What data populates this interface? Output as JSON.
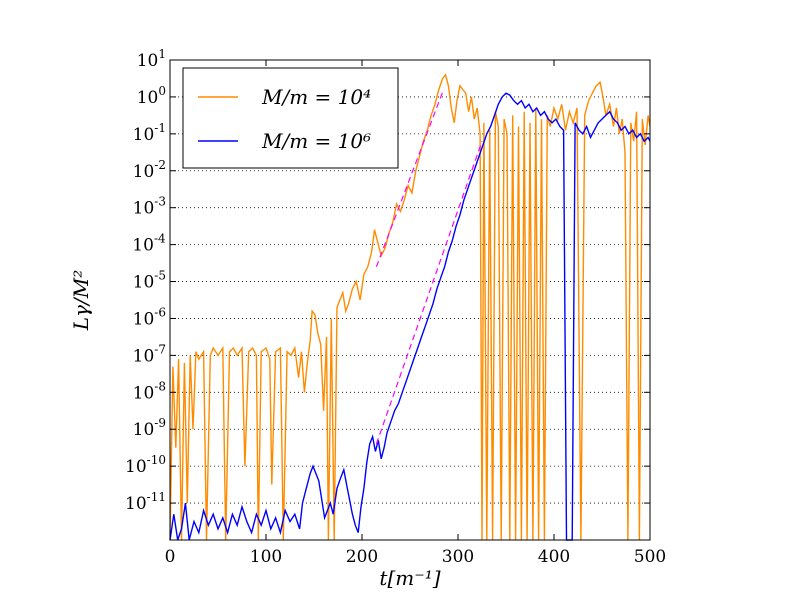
{
  "chart_data": {
    "type": "line",
    "title": "",
    "xlabel": "t[m⁻¹]",
    "ylabel": "Lγ/M²",
    "xlim": [
      0,
      500
    ],
    "ylim_log10": [
      -12,
      1
    ],
    "y_scale": "log",
    "grid": "y-dotted",
    "legend_position": "top-left",
    "x_ticks": [
      {
        "value": 0,
        "label": "0"
      },
      {
        "value": 100,
        "label": "100"
      },
      {
        "value": 200,
        "label": "200"
      },
      {
        "value": 300,
        "label": "300"
      },
      {
        "value": 400,
        "label": "400"
      },
      {
        "value": 500,
        "label": "500"
      }
    ],
    "y_ticks": [
      {
        "exp": 1,
        "base": "10",
        "sup": "1"
      },
      {
        "exp": 0,
        "base": "10",
        "sup": "0"
      },
      {
        "exp": -1,
        "base": "10",
        "sup": "-1"
      },
      {
        "exp": -2,
        "base": "10",
        "sup": "-2"
      },
      {
        "exp": -3,
        "base": "10",
        "sup": "-3"
      },
      {
        "exp": -4,
        "base": "10",
        "sup": "-4"
      },
      {
        "exp": -5,
        "base": "10",
        "sup": "-5"
      },
      {
        "exp": -6,
        "base": "10",
        "sup": "-6"
      },
      {
        "exp": -7,
        "base": "10",
        "sup": "-7"
      },
      {
        "exp": -8,
        "base": "10",
        "sup": "-8"
      },
      {
        "exp": -9,
        "base": "10",
        "sup": "-9"
      },
      {
        "exp": -10,
        "base": "10",
        "sup": "-10"
      },
      {
        "exp": -11,
        "base": "10",
        "sup": "-11"
      }
    ],
    "series": [
      {
        "name": "M/m = 10⁴",
        "color": "#ff8c00",
        "points_log10": [
          [
            0,
            -12
          ],
          [
            3,
            -7.3
          ],
          [
            6,
            -9.5
          ],
          [
            9,
            -7.1
          ],
          [
            12,
            -12
          ],
          [
            15,
            -7.2
          ],
          [
            18,
            -11
          ],
          [
            21,
            -7.0
          ],
          [
            24,
            -9
          ],
          [
            27,
            -6.9
          ],
          [
            30,
            -7.1
          ],
          [
            35,
            -6.9
          ],
          [
            38,
            -12
          ],
          [
            42,
            -7.0
          ],
          [
            45,
            -6.8
          ],
          [
            50,
            -7.0
          ],
          [
            55,
            -6.8
          ],
          [
            58,
            -12
          ],
          [
            62,
            -6.9
          ],
          [
            66,
            -6.8
          ],
          [
            70,
            -7.0
          ],
          [
            75,
            -6.8
          ],
          [
            78,
            -10
          ],
          [
            82,
            -6.9
          ],
          [
            86,
            -6.8
          ],
          [
            90,
            -7.0
          ],
          [
            92,
            -12
          ],
          [
            95,
            -6.9
          ],
          [
            100,
            -6.8
          ],
          [
            104,
            -7.1
          ],
          [
            106,
            -10.5
          ],
          [
            110,
            -6.9
          ],
          [
            115,
            -6.8
          ],
          [
            118,
            -12
          ],
          [
            122,
            -6.9
          ],
          [
            126,
            -7.0
          ],
          [
            130,
            -6.8
          ],
          [
            134,
            -7.6
          ],
          [
            137,
            -6.9
          ],
          [
            140,
            -8.0
          ],
          [
            143,
            -7.2
          ],
          [
            146,
            -6.6
          ],
          [
            148,
            -5.8
          ],
          [
            151,
            -5.9
          ],
          [
            154,
            -6.4
          ],
          [
            157,
            -6.7
          ],
          [
            160,
            -8.5
          ],
          [
            163,
            -6.5
          ],
          [
            165,
            -12
          ],
          [
            168,
            -6.0
          ],
          [
            171,
            -12
          ],
          [
            174,
            -5.7
          ],
          [
            177,
            -5.5
          ],
          [
            180,
            -5.3
          ],
          [
            183,
            -5.8
          ],
          [
            186,
            -5.6
          ],
          [
            190,
            -5.2
          ],
          [
            194,
            -5.0
          ],
          [
            198,
            -5.5
          ],
          [
            202,
            -4.8
          ],
          [
            206,
            -4.6
          ],
          [
            210,
            -4.2
          ],
          [
            213,
            -3.6
          ],
          [
            216,
            -3.9
          ],
          [
            220,
            -4.3
          ],
          [
            224,
            -4.1
          ],
          [
            228,
            -3.7
          ],
          [
            232,
            -3.4
          ],
          [
            236,
            -2.9
          ],
          [
            240,
            -3.1
          ],
          [
            244,
            -2.8
          ],
          [
            248,
            -2.4
          ],
          [
            252,
            -2.6
          ],
          [
            256,
            -2.0
          ],
          [
            260,
            -1.6
          ],
          [
            264,
            -1.2
          ],
          [
            268,
            -0.9
          ],
          [
            272,
            -0.5
          ],
          [
            276,
            -0.2
          ],
          [
            280,
            0.2
          ],
          [
            284,
            0.5
          ],
          [
            287,
            0.6
          ],
          [
            290,
            0.3
          ],
          [
            293,
            -0.3
          ],
          [
            296,
            -0.7
          ],
          [
            299,
            -0.1
          ],
          [
            302,
            0.3
          ],
          [
            305,
            0.2
          ],
          [
            308,
            0.1
          ],
          [
            311,
            -0.4
          ],
          [
            314,
            0.0
          ],
          [
            317,
            -0.6
          ],
          [
            320,
            -0.3
          ],
          [
            323,
            -1.0
          ],
          [
            325,
            -12
          ],
          [
            327,
            -0.7
          ],
          [
            330,
            -12
          ],
          [
            333,
            -0.9
          ],
          [
            336,
            -12
          ],
          [
            339,
            -0.4
          ],
          [
            342,
            -0.8
          ],
          [
            345,
            -12
          ],
          [
            348,
            -0.6
          ],
          [
            351,
            -1.0
          ],
          [
            354,
            -12
          ],
          [
            357,
            -0.5
          ],
          [
            360,
            -12
          ],
          [
            363,
            -0.8
          ],
          [
            366,
            -12
          ],
          [
            369,
            -0.4
          ],
          [
            372,
            -12
          ],
          [
            375,
            -0.7
          ],
          [
            378,
            -12
          ],
          [
            381,
            -0.3
          ],
          [
            384,
            -12
          ],
          [
            387,
            -0.6
          ],
          [
            390,
            -12
          ],
          [
            393,
            -0.5
          ],
          [
            396,
            -0.8
          ],
          [
            400,
            -0.3
          ],
          [
            404,
            -0.6
          ],
          [
            408,
            -0.2
          ],
          [
            412,
            -0.9
          ],
          [
            416,
            -0.4
          ],
          [
            420,
            -0.7
          ],
          [
            424,
            -0.3
          ],
          [
            428,
            -12
          ],
          [
            432,
            -0.5
          ],
          [
            436,
            -0.1
          ],
          [
            440,
            0.1
          ],
          [
            444,
            0.3
          ],
          [
            448,
            0.4
          ],
          [
            451,
            0.0
          ],
          [
            454,
            -0.5
          ],
          [
            458,
            -0.2
          ],
          [
            462,
            -0.8
          ],
          [
            465,
            -0.3
          ],
          [
            468,
            -1.0
          ],
          [
            471,
            -0.6
          ],
          [
            474,
            -1.5
          ],
          [
            477,
            -12
          ],
          [
            480,
            -0.7
          ],
          [
            483,
            -1.2
          ],
          [
            486,
            -0.4
          ],
          [
            489,
            -12
          ],
          [
            492,
            -0.6
          ],
          [
            495,
            -1.3
          ],
          [
            498,
            -0.5
          ],
          [
            500,
            -0.8
          ]
        ]
      },
      {
        "name": "M/m = 10⁶",
        "color": "#0000ff",
        "points_log10": [
          [
            0,
            -12
          ],
          [
            4,
            -11.3
          ],
          [
            8,
            -12
          ],
          [
            12,
            -11.7
          ],
          [
            16,
            -11.0
          ],
          [
            20,
            -12
          ],
          [
            25,
            -11.5
          ],
          [
            30,
            -11.8
          ],
          [
            35,
            -11.2
          ],
          [
            40,
            -11.6
          ],
          [
            45,
            -11.3
          ],
          [
            50,
            -11.7
          ],
          [
            55,
            -11.4
          ],
          [
            60,
            -11.8
          ],
          [
            65,
            -11.3
          ],
          [
            70,
            -11.6
          ],
          [
            75,
            -11.1
          ],
          [
            80,
            -11.5
          ],
          [
            85,
            -11.8
          ],
          [
            90,
            -11.3
          ],
          [
            95,
            -11.6
          ],
          [
            100,
            -11.2
          ],
          [
            105,
            -11.7
          ],
          [
            110,
            -11.4
          ],
          [
            115,
            -11.8
          ],
          [
            120,
            -11.2
          ],
          [
            125,
            -11.5
          ],
          [
            130,
            -11.3
          ],
          [
            135,
            -11.7
          ],
          [
            138,
            -11.0
          ],
          [
            142,
            -10.6
          ],
          [
            146,
            -10.2
          ],
          [
            149,
            -10.0
          ],
          [
            152,
            -10.2
          ],
          [
            155,
            -10.4
          ],
          [
            158,
            -10.9
          ],
          [
            161,
            -11.4
          ],
          [
            164,
            -11.2
          ],
          [
            167,
            -11.0
          ],
          [
            170,
            -11.3
          ],
          [
            174,
            -10.6
          ],
          [
            178,
            -10.3
          ],
          [
            181,
            -10.1
          ],
          [
            184,
            -10.5
          ],
          [
            187,
            -10.9
          ],
          [
            190,
            -11.3
          ],
          [
            193,
            -11.6
          ],
          [
            196,
            -11.8
          ],
          [
            199,
            -11.1
          ],
          [
            202,
            -10.6
          ],
          [
            205,
            -9.9
          ],
          [
            208,
            -9.4
          ],
          [
            211,
            -9.2
          ],
          [
            214,
            -9.6
          ],
          [
            217,
            -9.3
          ],
          [
            220,
            -9.8
          ],
          [
            223,
            -9.5
          ],
          [
            226,
            -9.1
          ],
          [
            230,
            -8.8
          ],
          [
            234,
            -8.5
          ],
          [
            238,
            -8.3
          ],
          [
            242,
            -8.0
          ],
          [
            246,
            -7.7
          ],
          [
            250,
            -7.4
          ],
          [
            254,
            -7.1
          ],
          [
            258,
            -6.8
          ],
          [
            262,
            -6.5
          ],
          [
            266,
            -6.2
          ],
          [
            270,
            -5.9
          ],
          [
            274,
            -5.6
          ],
          [
            278,
            -5.2
          ],
          [
            282,
            -4.9
          ],
          [
            286,
            -4.6
          ],
          [
            290,
            -4.2
          ],
          [
            294,
            -3.9
          ],
          [
            298,
            -3.5
          ],
          [
            302,
            -3.2
          ],
          [
            306,
            -2.8
          ],
          [
            310,
            -2.5
          ],
          [
            314,
            -2.2
          ],
          [
            318,
            -1.9
          ],
          [
            322,
            -1.6
          ],
          [
            326,
            -1.3
          ],
          [
            330,
            -1.0
          ],
          [
            334,
            -0.8
          ],
          [
            338,
            -0.5
          ],
          [
            342,
            -0.2
          ],
          [
            346,
            0.0
          ],
          [
            350,
            0.1
          ],
          [
            354,
            0.05
          ],
          [
            358,
            -0.1
          ],
          [
            362,
            -0.2
          ],
          [
            366,
            -0.1
          ],
          [
            370,
            -0.3
          ],
          [
            374,
            -0.2
          ],
          [
            378,
            -0.4
          ],
          [
            382,
            -0.3
          ],
          [
            386,
            -0.5
          ],
          [
            390,
            -0.4
          ],
          [
            394,
            -0.6
          ],
          [
            398,
            -0.7
          ],
          [
            402,
            -0.6
          ],
          [
            406,
            -0.8
          ],
          [
            410,
            -0.9
          ],
          [
            413,
            -12
          ],
          [
            416,
            -12
          ],
          [
            419,
            -12
          ],
          [
            422,
            -0.7
          ],
          [
            426,
            -0.9
          ],
          [
            430,
            -1.0
          ],
          [
            434,
            -0.8
          ],
          [
            438,
            -1.1
          ],
          [
            442,
            -0.9
          ],
          [
            446,
            -0.7
          ],
          [
            450,
            -0.6
          ],
          [
            454,
            -0.5
          ],
          [
            458,
            -0.4
          ],
          [
            462,
            -0.6
          ],
          [
            466,
            -0.7
          ],
          [
            470,
            -0.9
          ],
          [
            474,
            -0.8
          ],
          [
            478,
            -1.0
          ],
          [
            482,
            -0.9
          ],
          [
            486,
            -1.1
          ],
          [
            490,
            -1.0
          ],
          [
            494,
            -1.2
          ],
          [
            498,
            -1.1
          ],
          [
            500,
            -1.2
          ]
        ]
      }
    ],
    "fits": [
      {
        "name": "fit-orange",
        "color": "#ff00ff",
        "points_log10": [
          [
            215,
            -4.6
          ],
          [
            285,
            0.2
          ]
        ]
      },
      {
        "name": "fit-blue",
        "color": "#ff00ff",
        "points_log10": [
          [
            215,
            -9.4
          ],
          [
            325,
            -1.2
          ]
        ]
      }
    ],
    "legend": [
      {
        "label": "M/m = 10⁴",
        "color": "#ff8c00"
      },
      {
        "label": "M/m = 10⁶",
        "color": "#0000ff"
      }
    ]
  }
}
